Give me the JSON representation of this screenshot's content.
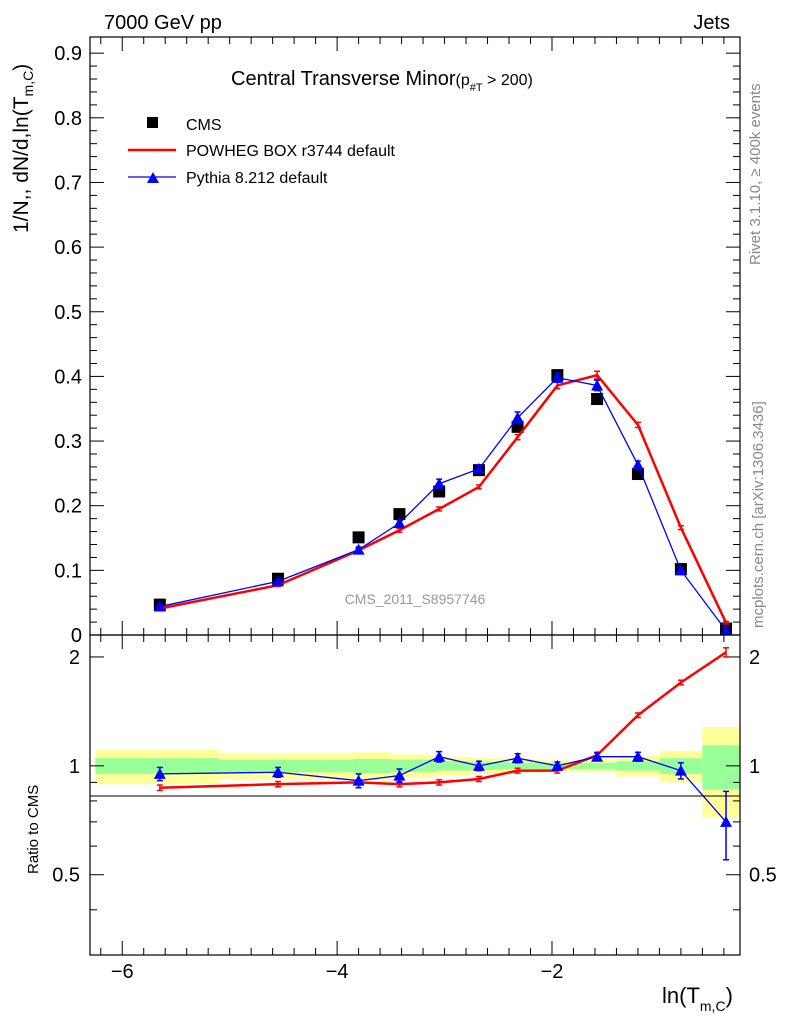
{
  "header": {
    "left": "7000 GeV pp",
    "right": "Jets"
  },
  "side_labels": {
    "rivet": "Rivet 3.1.10, ≥ 400k events",
    "mcplots": "mcplots.cern.ch [arXiv:1306.3436]"
  },
  "watermark": "CMS_2011_S8957746",
  "chart_data": {
    "type": "line",
    "title": "Central Transverse Minor",
    "title_cut": "(p",
    "title_cut_sub": "#T",
    "title_cut_tail": " > 200)",
    "xlabel": "ln(T",
    "xlabel_sub": "m,C",
    "xlabel_tail": ")",
    "ylabel": "1/N",
    "ylabel_mid": ",, dN/d,ln(T",
    "ylabel_sub": "m,C",
    "ylabel_tail": ")",
    "ratio_ylabel": "Ratio to CMS",
    "xlim": [
      -6.3,
      -0.25
    ],
    "ylim": [
      0,
      0.925
    ],
    "ratio_ylim": [
      0.3,
      2.3
    ],
    "xticks": [
      "-6",
      "-4",
      "-2"
    ],
    "xtick_values": [
      -6,
      -4,
      -2
    ],
    "yticks": [
      "0",
      "0.1",
      "0.2",
      "0.3",
      "0.4",
      "0.5",
      "0.6",
      "0.7",
      "0.8",
      "0.9"
    ],
    "ytick_values": [
      0,
      0.1,
      0.2,
      0.3,
      0.4,
      0.5,
      0.6,
      0.7,
      0.8,
      0.9
    ],
    "ratio_yticks": [
      "0.5",
      "1",
      "2"
    ],
    "ratio_ytick_values": [
      0.5,
      1,
      2
    ],
    "legend": [
      {
        "name": "CMS",
        "color": "#000000",
        "marker": "square"
      },
      {
        "name": "POWHEG BOX r3744 default",
        "color": "#ff0000",
        "marker": "line"
      },
      {
        "name": "Pythia 8.212 default",
        "color": "#0000ff",
        "marker": "triangle"
      }
    ],
    "bins": [
      {
        "lo": -6.25,
        "hi": -5.1,
        "band_in": 0.05,
        "band_out": 0.11
      },
      {
        "lo": -5.1,
        "hi": -3.85,
        "band_in": 0.04,
        "band_out": 0.085
      },
      {
        "lo": -3.85,
        "hi": -3.5,
        "band_in": 0.045,
        "band_out": 0.09
      },
      {
        "lo": -3.5,
        "hi": -3.1,
        "band_in": 0.04,
        "band_out": 0.075
      },
      {
        "lo": -3.1,
        "hi": -2.75,
        "band_in": 0.03,
        "band_out": 0.06
      },
      {
        "lo": -2.75,
        "hi": -2.4,
        "band_in": 0.025,
        "band_out": 0.05
      },
      {
        "lo": -2.4,
        "hi": -2.05,
        "band_in": 0.02,
        "band_out": 0.04
      },
      {
        "lo": -2.05,
        "hi": -1.75,
        "band_in": 0.02,
        "band_out": 0.035
      },
      {
        "lo": -1.75,
        "hi": -1.4,
        "band_in": 0.02,
        "band_out": 0.04
      },
      {
        "lo": -1.4,
        "hi": -1.0,
        "band_in": 0.03,
        "band_out": 0.065
      },
      {
        "lo": -1.0,
        "hi": -0.6,
        "band_in": 0.05,
        "band_out": 0.1
      },
      {
        "lo": -0.6,
        "hi": -0.25,
        "band_in": 0.14,
        "band_out": 0.28
      }
    ],
    "series": [
      {
        "name": "CMS",
        "color": "#000000",
        "x": [
          -5.65,
          -4.55,
          -3.8,
          -3.42,
          -3.05,
          -2.68,
          -2.32,
          -1.95,
          -1.58,
          -1.2,
          -0.8,
          -0.38
        ],
        "y": [
          0.047,
          0.087,
          0.151,
          0.187,
          0.222,
          0.255,
          0.322,
          0.402,
          0.365,
          0.249,
          0.102,
          0.01
        ]
      },
      {
        "name": "POWHEG BOX r3744 default",
        "color": "#ff0000",
        "x": [
          -5.65,
          -4.55,
          -3.8,
          -3.42,
          -3.05,
          -2.68,
          -2.32,
          -1.95,
          -1.58,
          -1.2,
          -0.8,
          -0.38
        ],
        "y": [
          0.041,
          0.077,
          0.131,
          0.162,
          0.195,
          0.229,
          0.306,
          0.386,
          0.402,
          0.325,
          0.166,
          0.019
        ],
        "err": [
          0.002,
          0.002,
          0.003,
          0.003,
          0.003,
          0.003,
          0.004,
          0.005,
          0.006,
          0.004,
          0.003,
          0.002
        ],
        "ratio": [
          0.87,
          0.89,
          0.9,
          0.89,
          0.9,
          0.92,
          0.97,
          0.97,
          1.07,
          1.38,
          1.7,
          2.06
        ],
        "ratio_err": [
          0.015,
          0.015,
          0.015,
          0.015,
          0.015,
          0.015,
          0.015,
          0.015,
          0.02,
          0.02,
          0.025,
          0.06
        ]
      },
      {
        "name": "Pythia 8.212 default",
        "color": "#0000ff",
        "x": [
          -5.65,
          -4.55,
          -3.8,
          -3.42,
          -3.05,
          -2.68,
          -2.32,
          -1.95,
          -1.58,
          -1.2,
          -0.8,
          -0.38
        ],
        "y": [
          0.044,
          0.083,
          0.132,
          0.173,
          0.234,
          0.257,
          0.336,
          0.398,
          0.386,
          0.263,
          0.1,
          0.007
        ],
        "err": [
          0.003,
          0.003,
          0.004,
          0.005,
          0.007,
          0.006,
          0.009,
          0.007,
          0.008,
          0.006,
          0.004,
          0.002
        ],
        "ratio": [
          0.95,
          0.96,
          0.91,
          0.94,
          1.06,
          1.0,
          1.05,
          1.0,
          1.06,
          1.06,
          0.97,
          0.7
        ],
        "ratio_err": [
          0.04,
          0.03,
          0.04,
          0.04,
          0.035,
          0.03,
          0.03,
          0.025,
          0.025,
          0.03,
          0.05,
          0.15
        ]
      }
    ]
  }
}
